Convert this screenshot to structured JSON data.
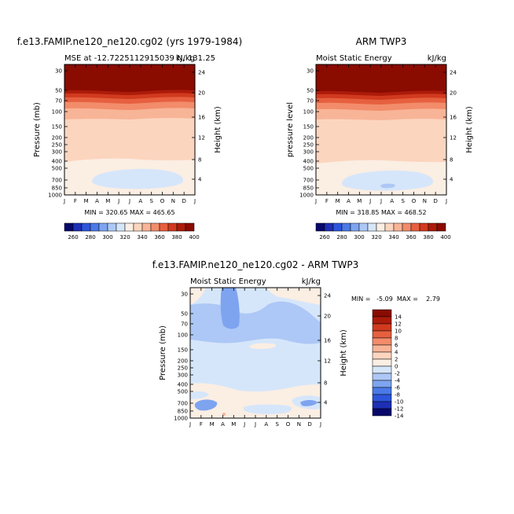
{
  "chart_data": [
    {
      "type": "heatmap",
      "panel": "model",
      "title": "f.e13.FAMIP.ne120_ne120.cg02 (yrs 1979-1984)",
      "left_string": "MSE at -12.7225112915039 N, 131.25",
      "right_string": "kJ/kg",
      "ylabel": "Pressure (mb)",
      "ylabel_right": "Height (km)",
      "months": [
        "J",
        "F",
        "M",
        "A",
        "M",
        "J",
        "J",
        "A",
        "S",
        "O",
        "N",
        "D",
        "J"
      ],
      "pressure_ticks": [
        "30",
        "50",
        "70",
        "100",
        "150",
        "200",
        "250",
        "300",
        "400",
        "500",
        "700",
        "850",
        "1000"
      ],
      "height_ticks": [
        "24",
        "20",
        "16",
        "12",
        "8",
        "4"
      ],
      "stats": "MIN = 320.65  MAX = 465.65",
      "min": 320.65,
      "max": 465.65,
      "contour_levels": [
        260,
        270,
        280,
        290,
        300,
        310,
        320,
        330,
        340,
        350,
        360,
        370,
        380,
        390,
        400
      ]
    },
    {
      "type": "heatmap",
      "panel": "obs",
      "title": "ARM TWP3",
      "left_string": "Moist Static Energy",
      "right_string": "kJ/kg",
      "ylabel": "pressure level",
      "ylabel_right": "Height (km)",
      "months": [
        "J",
        "F",
        "M",
        "A",
        "M",
        "J",
        "J",
        "A",
        "S",
        "O",
        "N",
        "D",
        "J"
      ],
      "pressure_ticks": [
        "30",
        "50",
        "70",
        "100",
        "150",
        "200",
        "250",
        "300",
        "400",
        "500",
        "700",
        "850",
        "1000"
      ],
      "height_ticks": [
        "24",
        "20",
        "16",
        "12",
        "8",
        "4"
      ],
      "stats": "MIN = 318.85  MAX = 468.52",
      "min": 318.85,
      "max": 468.52,
      "contour_levels": [
        260,
        270,
        280,
        290,
        300,
        310,
        320,
        330,
        340,
        350,
        360,
        370,
        380,
        390,
        400
      ]
    },
    {
      "type": "heatmap",
      "panel": "difference",
      "title": "f.e13.FAMIP.ne120_ne120.cg02 - ARM TWP3",
      "left_string": "Moist Static Energy",
      "right_string": "kJ/kg",
      "ylabel": "Pressure (mb)",
      "ylabel_right": "Height (km)",
      "months": [
        "J",
        "F",
        "M",
        "A",
        "M",
        "J",
        "J",
        "A",
        "S",
        "O",
        "N",
        "D",
        "J"
      ],
      "pressure_ticks": [
        "30",
        "50",
        "70",
        "100",
        "150",
        "200",
        "250",
        "300",
        "400",
        "500",
        "700",
        "850",
        "1000"
      ],
      "height_ticks": [
        "24",
        "20",
        "16",
        "12",
        "8",
        "4"
      ],
      "stats": "MIN =   -5.09  MAX =    2.79",
      "min": -5.09,
      "max": 2.79,
      "contour_levels": [
        -14,
        -12,
        -10,
        -8,
        -6,
        -4,
        -2,
        0,
        2,
        4,
        6,
        8,
        10,
        12,
        14
      ]
    }
  ],
  "colorbar_abs": {
    "labels": [
      "260",
      "280",
      "300",
      "320",
      "340",
      "360",
      "380",
      "400"
    ],
    "colors": [
      "#08086b",
      "#1d2fb4",
      "#2d55dc",
      "#4a7ae8",
      "#7ea4f0",
      "#adc8f6",
      "#d6e6fa",
      "#fbeee3",
      "#fcd5bf",
      "#f8b497",
      "#f28c6a",
      "#e6603f",
      "#d13a1f",
      "#ac1b0a",
      "#8a0b00"
    ]
  },
  "colorbar_diff": {
    "labels": [
      "14",
      "12",
      "10",
      "8",
      "6",
      "4",
      "2",
      "0",
      "-2",
      "-4",
      "-6",
      "-8",
      "-10",
      "-12",
      "-14"
    ],
    "colors": [
      "#8a0b00",
      "#ac1b0a",
      "#d13a1f",
      "#e6603f",
      "#f28c6a",
      "#f8b497",
      "#fcd5bf",
      "#fbeee3",
      "#d6e6fa",
      "#adc8f6",
      "#7ea4f0",
      "#4a7ae8",
      "#2d55dc",
      "#1d2fb4",
      "#08086b"
    ]
  }
}
